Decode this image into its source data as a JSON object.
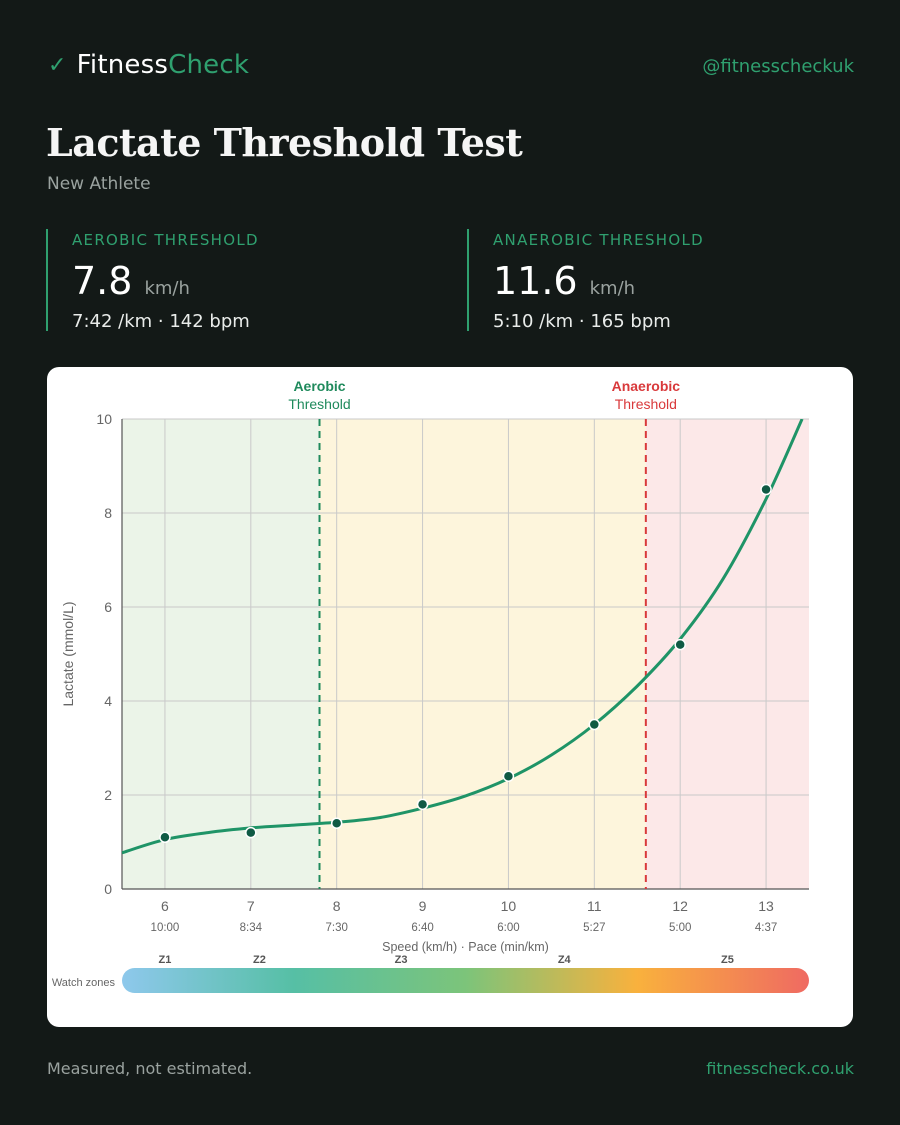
{
  "brand": {
    "check": "✓",
    "name_a": "Fitness",
    "name_b": "Check"
  },
  "handle": "@fitnesscheckuk",
  "title": "Lactate Threshold Test",
  "subtitle": "New Athlete",
  "colors": {
    "background": "#131917",
    "accent": "#2fa06f",
    "aerobic": "#1f8a5c",
    "anaerobic": "#d9393b"
  },
  "aerobic": {
    "label": "AEROBIC THRESHOLD",
    "value": "7.8",
    "unit": "km/h",
    "detail": "7:42 /km · 142 bpm"
  },
  "anaerobic": {
    "label": "ANAEROBIC THRESHOLD",
    "value": "11.6",
    "unit": "km/h",
    "detail": "5:10 /km · 165 bpm"
  },
  "footer": {
    "left": "Measured, not estimated.",
    "right": "fitnesscheck.co.uk"
  },
  "chart_data": {
    "type": "line",
    "ylabel": "Lactate (mmol/L)",
    "xlabel": "Speed (km/h) · Pace (min/km)",
    "xlim": [
      5.5,
      13.5
    ],
    "ylim": [
      0,
      10
    ],
    "grid": true,
    "x_ticks": [
      6,
      7,
      8,
      9,
      10,
      11,
      12,
      13
    ],
    "pace_ticks": [
      "10:00",
      "8:34",
      "7:30",
      "6:40",
      "6:00",
      "5:27",
      "5:00",
      "4:37"
    ],
    "y_ticks": [
      0,
      2,
      4,
      6,
      8,
      10
    ],
    "points": [
      {
        "x": 6,
        "y": 1.1
      },
      {
        "x": 7,
        "y": 1.2
      },
      {
        "x": 8,
        "y": 1.4
      },
      {
        "x": 9,
        "y": 1.8
      },
      {
        "x": 10,
        "y": 2.4
      },
      {
        "x": 11,
        "y": 3.5
      },
      {
        "x": 12,
        "y": 5.2
      },
      {
        "x": 13,
        "y": 8.5
      }
    ],
    "curve": [
      [
        5.5,
        0.77
      ],
      [
        6,
        1.05
      ],
      [
        6.5,
        1.2
      ],
      [
        7,
        1.3
      ],
      [
        7.5,
        1.36
      ],
      [
        8,
        1.42
      ],
      [
        8.5,
        1.52
      ],
      [
        9,
        1.72
      ],
      [
        9.5,
        1.98
      ],
      [
        10,
        2.35
      ],
      [
        10.5,
        2.85
      ],
      [
        11,
        3.5
      ],
      [
        11.5,
        4.32
      ],
      [
        12,
        5.32
      ],
      [
        12.5,
        6.6
      ],
      [
        13,
        8.3
      ],
      [
        13.42,
        10.0
      ]
    ],
    "zones": [
      {
        "from": 5.5,
        "to": 7.8,
        "color": "#ebf4e8"
      },
      {
        "from": 7.8,
        "to": 11.6,
        "color": "#fdf5dc"
      },
      {
        "from": 11.6,
        "to": 13.5,
        "color": "#fce8e8"
      }
    ],
    "thresholds": [
      {
        "x": 7.8,
        "name": "Aerobic",
        "label": "Threshold",
        "color": "#1f8a5c"
      },
      {
        "x": 11.6,
        "name": "Anaerobic",
        "label": "Threshold",
        "color": "#d9393b"
      }
    ],
    "watch_zones": {
      "label": "Watch zones",
      "zones": [
        {
          "name": "Z1",
          "x": 6
        },
        {
          "name": "Z2",
          "x": 7.1
        },
        {
          "name": "Z3",
          "x": 8.75
        },
        {
          "name": "Z4",
          "x": 10.65
        },
        {
          "name": "Z5",
          "x": 12.55
        }
      ],
      "gradient": [
        "#8ec8ec",
        "#56bfa5",
        "#7cc47a",
        "#f9b13d",
        "#ef6a62"
      ]
    }
  }
}
